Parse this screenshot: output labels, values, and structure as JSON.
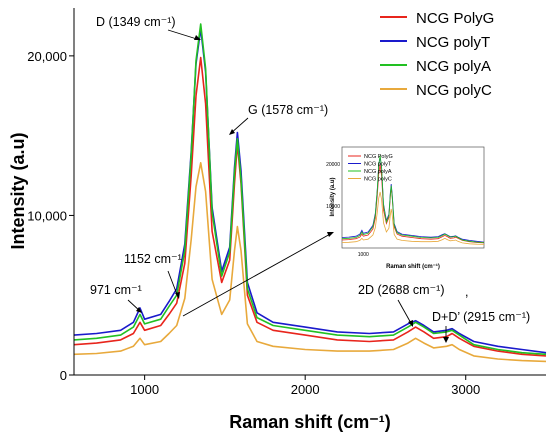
{
  "chart_data": {
    "type": "line",
    "xlabel": "Raman shift (cm⁻¹)",
    "ylabel": "Intensity (a.u)",
    "xlim": [
      560,
      3500
    ],
    "ylim": [
      0,
      23000
    ],
    "xticks": [
      {
        "v": 1000,
        "label": "1000"
      },
      {
        "v": 2000,
        "label": "2000"
      },
      {
        "v": 3000,
        "label": "3000"
      }
    ],
    "yticks": [
      {
        "v": 0,
        "label": "0"
      },
      {
        "v": 10000,
        "label": "10,000"
      },
      {
        "v": 20000,
        "label": "20,000"
      }
    ],
    "legend_position": "top-right",
    "series": [
      {
        "name": "NCG PolyG",
        "color": "#e8251c",
        "x": [
          560,
          700,
          850,
          930,
          971,
          1000,
          1100,
          1152,
          1200,
          1250,
          1290,
          1320,
          1349,
          1380,
          1420,
          1480,
          1530,
          1560,
          1578,
          1600,
          1640,
          1700,
          1800,
          2000,
          2200,
          2400,
          2550,
          2640,
          2688,
          2740,
          2800,
          2880,
          2915,
          2960,
          3050,
          3200,
          3350,
          3500
        ],
        "y": [
          1900,
          2000,
          2200,
          2600,
          3300,
          2800,
          3100,
          3800,
          4500,
          7000,
          12500,
          17500,
          19900,
          17000,
          9000,
          5800,
          7200,
          12000,
          14500,
          12000,
          5000,
          3300,
          2800,
          2500,
          2200,
          2100,
          2200,
          2700,
          3000,
          2700,
          2300,
          2400,
          2600,
          2300,
          1800,
          1500,
          1300,
          1200
        ]
      },
      {
        "name": "NCG polyT",
        "color": "#1a1acc",
        "x": [
          560,
          700,
          850,
          930,
          971,
          1000,
          1100,
          1152,
          1200,
          1250,
          1290,
          1320,
          1349,
          1380,
          1420,
          1480,
          1530,
          1560,
          1578,
          1600,
          1640,
          1700,
          1800,
          2000,
          2200,
          2400,
          2550,
          2640,
          2688,
          2740,
          2800,
          2880,
          2915,
          2960,
          3050,
          3200,
          3350,
          3500
        ],
        "y": [
          2500,
          2600,
          2800,
          3300,
          4200,
          3500,
          3800,
          4600,
          5400,
          8200,
          14000,
          19500,
          21700,
          19000,
          10500,
          6500,
          8000,
          13000,
          15200,
          12800,
          5800,
          3900,
          3300,
          3000,
          2700,
          2600,
          2700,
          3200,
          3400,
          3100,
          2700,
          2800,
          2900,
          2600,
          2100,
          1800,
          1600,
          1400
        ]
      },
      {
        "name": "NCG polyA",
        "color": "#22c022",
        "x": [
          560,
          700,
          850,
          930,
          971,
          1000,
          1100,
          1152,
          1200,
          1250,
          1290,
          1320,
          1349,
          1380,
          1420,
          1480,
          1530,
          1560,
          1578,
          1600,
          1640,
          1700,
          1800,
          2000,
          2200,
          2400,
          2550,
          2640,
          2688,
          2740,
          2800,
          2880,
          2915,
          2960,
          3050,
          3200,
          3350,
          3500
        ],
        "y": [
          2200,
          2300,
          2500,
          3000,
          3800,
          3200,
          3500,
          4300,
          5000,
          7800,
          13800,
          19700,
          22000,
          19200,
          10200,
          6200,
          7700,
          12700,
          14800,
          12300,
          5400,
          3600,
          3100,
          2800,
          2500,
          2400,
          2500,
          3000,
          3300,
          3000,
          2600,
          2700,
          2800,
          2500,
          1900,
          1600,
          1400,
          1300
        ]
      },
      {
        "name": "NCG polyC",
        "color": "#e8a93c",
        "x": [
          560,
          700,
          850,
          930,
          971,
          1000,
          1100,
          1152,
          1200,
          1250,
          1290,
          1320,
          1349,
          1380,
          1420,
          1480,
          1530,
          1560,
          1578,
          1600,
          1640,
          1700,
          1800,
          2000,
          2200,
          2400,
          2550,
          2640,
          2688,
          2740,
          2800,
          2880,
          2915,
          2960,
          3050,
          3200,
          3350,
          3500
        ],
        "y": [
          1300,
          1350,
          1500,
          1800,
          2300,
          1900,
          2100,
          2600,
          3100,
          4800,
          8500,
          11800,
          13300,
          11500,
          6000,
          3800,
          4700,
          7800,
          9300,
          7800,
          3200,
          2100,
          1800,
          1600,
          1500,
          1500,
          1600,
          2000,
          2300,
          2000,
          1700,
          1800,
          1900,
          1600,
          1200,
          1000,
          900,
          850
        ]
      }
    ],
    "annotations": [
      {
        "label": "D (1349 cm⁻¹)",
        "x": 1349
      },
      {
        "label": "G (1578 cm⁻¹)",
        "x": 1578
      },
      {
        "label": "1152 cm⁻¹",
        "x": 1152
      },
      {
        "label": "971 cm⁻¹",
        "x": 971
      },
      {
        "label": "2D (2688 cm⁻¹)",
        "x": 2688
      },
      {
        "label": ",",
        "x": 2800
      },
      {
        "label": "D+D’ (2915 cm⁻¹)",
        "x": 2915
      }
    ],
    "inset": {
      "xlabel": "Raman shift (cm⁻¹)",
      "ylabel": "Intensity (a.u)",
      "xticks": [
        {
          "v": 1000,
          "label": "1000"
        }
      ],
      "yticks": [
        {
          "v": 10000,
          "label": "10000"
        },
        {
          "v": 20000,
          "label": "20000"
        }
      ],
      "legend": [
        "NCG PolyG",
        "NCG polyT",
        "NCG polyA",
        "NCG polyC"
      ]
    }
  }
}
